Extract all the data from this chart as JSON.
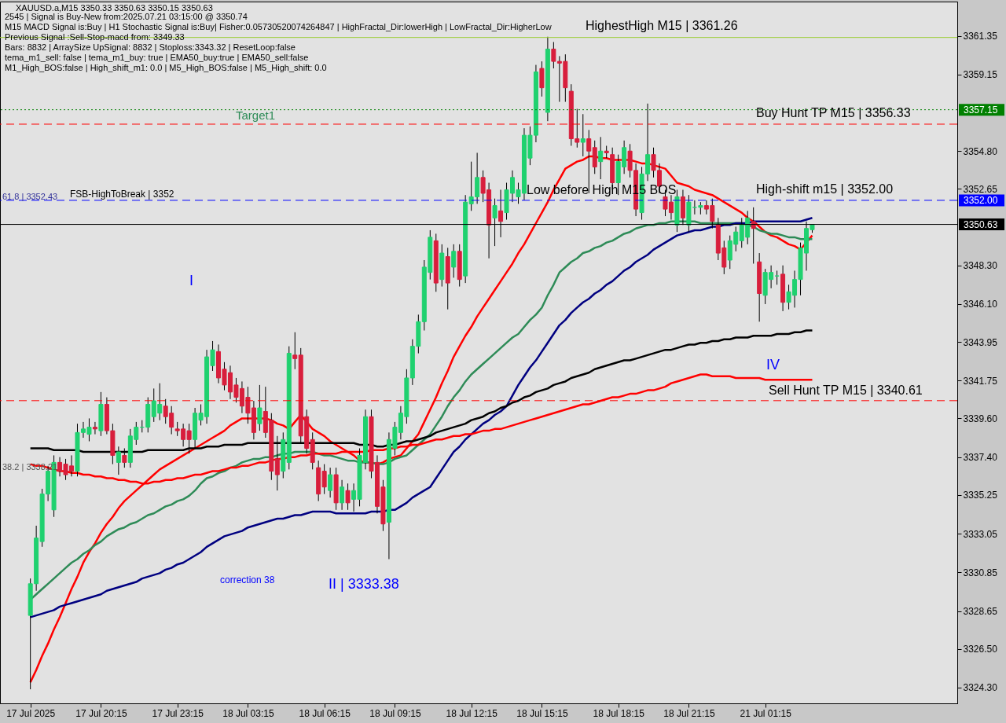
{
  "chart_data": {
    "type": "candlestick",
    "title": "XAUUSD.a,M15  3350.33 3350.63 3350.15 3350.63",
    "annotations": [
      "2545 | Signal is Buy-New from:2025.07.21 03:15:00 @ 3350.74",
      "M15 MACD Signal is:Buy | H1 Stochastic Signal is:Buy| Fisher:0.05730520074264847 | HighFractal_Dir:lowerHigh | LowFractal_Dir:HigherLow",
      "Previous Signal :Sell-Stop-macd from: 3349.33",
      "Bars: 8832 | ArraySize UpSignal: 8832 | Stoploss:3343.32 | ResetLoop:false",
      "tema_m1_sell: false | tema_m1_buy: true | EMA50_buy:true | EMA50_sell:false",
      "M1_High_BOS:false | High_shift_m1: 0.0 | M5_High_BOS:false | M5_High_shift: 0.0",
      "Target1",
      "HighestHigh  M15 | 3361.26",
      "Buy Hunt TP M15 | 3356.33",
      "High-shift m15 | 3352.00",
      "Sell Hunt TP M15 | 3340.61",
      "Low before High  M15 BOS",
      "FSB-HighToBreak | 3352",
      "61.8 | 3352.43",
      "38.2 | 3338.21",
      "I",
      "II | 3333.38",
      "IV",
      "correction 38"
    ],
    "categories": [
      "17 Jul 2025",
      null,
      null,
      null,
      null,
      null,
      null,
      null,
      null,
      null,
      null,
      null,
      "17 Jul 20:15",
      null,
      null,
      null,
      null,
      null,
      null,
      null,
      null,
      null,
      null,
      null,
      null,
      "17 Jul 23:15",
      null,
      null,
      null,
      null,
      null,
      null,
      null,
      null,
      null,
      null,
      null,
      "18 Jul 03:15",
      null,
      null,
      null,
      null,
      null,
      null,
      null,
      null,
      null,
      null,
      null,
      null,
      "18 Jul 06:15",
      null,
      null,
      null,
      null,
      null,
      null,
      null,
      null,
      null,
      null,
      null,
      "18 Jul 09:15",
      null,
      null,
      null,
      null,
      null,
      null,
      null,
      null,
      null,
      null,
      null,
      null,
      "18 Jul 12:15",
      null,
      null,
      null,
      null,
      null,
      null,
      null,
      null,
      null,
      null,
      null,
      "18 Jul 15:15",
      null,
      null,
      null,
      null,
      null,
      null,
      null,
      null,
      null,
      null,
      null,
      null,
      "18 Jul 18:15",
      null,
      null,
      null,
      null,
      null,
      null,
      null,
      null,
      null,
      null,
      null,
      "18 Jul 21:15",
      null,
      null,
      null,
      null,
      null,
      null,
      null,
      null,
      null,
      null,
      null,
      null,
      "21 Jul 01:15",
      null,
      null,
      null,
      null,
      null,
      null,
      null,
      null
    ],
    "ohlc": [
      [
        3328.4,
        3330.5,
        3324.2,
        3330.2
      ],
      [
        3330.2,
        3333.5,
        3329.8,
        3332.8
      ],
      [
        3332.6,
        3335.6,
        3332.3,
        3335.3
      ],
      [
        3335.3,
        3336.9,
        3334.9,
        3336.6
      ],
      [
        3334.4,
        3337.5,
        3334.0,
        3337.1
      ],
      [
        3337.1,
        3337.4,
        3336.3,
        3336.6
      ],
      [
        3337.0,
        3337.3,
        3336.1,
        3336.4
      ],
      [
        3336.9,
        3337.5,
        3336.3,
        3336.6
      ],
      [
        3336.6,
        3339.3,
        3336.3,
        3338.8
      ],
      [
        3338.8,
        3339.4,
        3338.5,
        3339.0
      ],
      [
        3338.7,
        3339.6,
        3338.3,
        3339.1
      ],
      [
        3339.1,
        3339.4,
        3338.7,
        3339.0
      ],
      [
        3338.9,
        3341.1,
        3338.6,
        3340.4
      ],
      [
        3340.4,
        3340.8,
        3338.7,
        3338.9
      ],
      [
        3338.9,
        3339.3,
        3337.0,
        3337.5
      ],
      [
        3337.1,
        3338.0,
        3336.4,
        3337.7
      ],
      [
        3337.5,
        3337.9,
        3336.8,
        3337.1
      ],
      [
        3337.1,
        3339.0,
        3336.8,
        3338.6
      ],
      [
        3338.4,
        3339.4,
        3338.1,
        3339.1
      ],
      [
        3339.1,
        3339.5,
        3338.8,
        3339.1
      ],
      [
        3339.1,
        3340.8,
        3338.8,
        3340.4
      ],
      [
        3339.7,
        3341.3,
        3339.4,
        3340.6
      ],
      [
        3339.9,
        3341.6,
        3339.5,
        3340.4
      ],
      [
        3340.3,
        3340.7,
        3339.3,
        3339.7
      ],
      [
        3339.9,
        3340.3,
        3338.7,
        3339.1
      ],
      [
        3339.0,
        3339.4,
        3338.6,
        3338.9
      ],
      [
        3339.0,
        3339.3,
        3338.0,
        3338.4
      ],
      [
        3338.9,
        3339.3,
        3337.6,
        3338.4
      ],
      [
        3338.4,
        3340.2,
        3337.9,
        3339.9
      ],
      [
        3339.5,
        3340.4,
        3339.2,
        3339.9
      ],
      [
        3339.7,
        3343.5,
        3339.3,
        3343.1
      ],
      [
        3342.6,
        3344.0,
        3342.3,
        3343.5
      ],
      [
        3343.4,
        3343.8,
        3341.6,
        3341.9
      ],
      [
        3342.4,
        3342.8,
        3341.2,
        3341.5
      ],
      [
        3342.2,
        3342.6,
        3340.7,
        3341.1
      ],
      [
        3341.5,
        3341.9,
        3340.5,
        3340.8
      ],
      [
        3341.3,
        3341.7,
        3339.9,
        3340.3
      ],
      [
        3340.8,
        3341.4,
        3339.3,
        3339.9
      ],
      [
        3340.2,
        3340.6,
        3338.4,
        3338.8
      ],
      [
        3339.3,
        3341.5,
        3338.9,
        3340.2
      ],
      [
        3340.0,
        3341.4,
        3338.5,
        3338.8
      ],
      [
        3339.5,
        3339.9,
        3336.1,
        3336.6
      ],
      [
        3337.3,
        3338.6,
        3335.5,
        3336.4
      ],
      [
        3336.6,
        3338.8,
        3336.2,
        3338.4
      ],
      [
        3337.1,
        3343.7,
        3336.7,
        3343.3
      ],
      [
        3343.2,
        3344.5,
        3342.4,
        3343.0
      ],
      [
        3343.2,
        3343.6,
        3338.2,
        3338.6
      ],
      [
        3339.7,
        3340.1,
        3337.6,
        3337.9
      ],
      [
        3338.4,
        3338.8,
        3336.7,
        3337.1
      ],
      [
        3336.8,
        3337.2,
        3334.9,
        3335.3
      ],
      [
        3336.6,
        3337.0,
        3335.3,
        3335.7
      ],
      [
        3335.5,
        3336.8,
        3335.1,
        3336.4
      ],
      [
        3336.4,
        3336.8,
        3334.4,
        3334.8
      ],
      [
        3334.8,
        3336.1,
        3334.4,
        3335.7
      ],
      [
        3335.5,
        3335.9,
        3334.4,
        3334.8
      ],
      [
        3335.0,
        3335.9,
        3334.3,
        3335.5
      ],
      [
        3335.0,
        3337.9,
        3334.6,
        3337.5
      ],
      [
        3337.1,
        3340.1,
        3336.7,
        3339.7
      ],
      [
        3339.7,
        3340.1,
        3336.2,
        3336.6
      ],
      [
        3337.1,
        3337.5,
        3334.2,
        3334.6
      ],
      [
        3335.7,
        3336.1,
        3333.2,
        3333.6
      ],
      [
        3333.7,
        3338.8,
        3331.6,
        3338.4
      ],
      [
        3337.9,
        3339.4,
        3337.5,
        3339.1
      ],
      [
        3338.8,
        3340.3,
        3338.4,
        3339.9
      ],
      [
        3339.7,
        3342.4,
        3339.3,
        3341.9
      ],
      [
        3341.9,
        3344.1,
        3341.5,
        3343.7
      ],
      [
        3343.7,
        3345.5,
        3343.3,
        3345.1
      ],
      [
        3345.1,
        3348.6,
        3344.6,
        3348.2
      ],
      [
        3347.9,
        3350.3,
        3347.5,
        3349.9
      ],
      [
        3349.7,
        3350.1,
        3346.8,
        3347.3
      ],
      [
        3347.5,
        3349.5,
        3347.1,
        3349.0
      ],
      [
        3348.8,
        3349.3,
        3345.8,
        3347.3
      ],
      [
        3348.2,
        3349.5,
        3347.6,
        3349.1
      ],
      [
        3349.1,
        3349.5,
        3347.1,
        3347.5
      ],
      [
        3347.7,
        3352.3,
        3347.3,
        3351.9
      ],
      [
        3351.8,
        3354.2,
        3351.4,
        3352.2
      ],
      [
        3352.2,
        3354.7,
        3351.8,
        3353.3
      ],
      [
        3353.3,
        3353.7,
        3351.9,
        3352.4
      ],
      [
        3352.6,
        3353.0,
        3348.7,
        3350.6
      ],
      [
        3351.0,
        3352.1,
        3349.4,
        3351.7
      ],
      [
        3351.4,
        3352.6,
        3349.9,
        3350.8
      ],
      [
        3351.3,
        3353.0,
        3350.9,
        3352.6
      ],
      [
        3352.4,
        3353.7,
        3351.9,
        3353.3
      ],
      [
        3352.2,
        3353.0,
        3351.8,
        3352.6
      ],
      [
        3352.4,
        3356.1,
        3352.0,
        3355.7
      ],
      [
        3354.4,
        3356.2,
        3354.0,
        3355.7
      ],
      [
        3355.7,
        3359.7,
        3355.3,
        3359.3
      ],
      [
        3359.5,
        3359.9,
        3357.9,
        3358.4
      ],
      [
        3357.0,
        3361.3,
        3356.5,
        3360.6
      ],
      [
        3360.6,
        3361.0,
        3359.5,
        3359.9
      ],
      [
        3359.9,
        3360.2,
        3357.6,
        3359.8
      ],
      [
        3359.9,
        3360.3,
        3357.6,
        3358.4
      ],
      [
        3358.2,
        3358.6,
        3355.1,
        3355.5
      ],
      [
        3355.5,
        3357.2,
        3355.0,
        3355.3
      ],
      [
        3355.3,
        3356.9,
        3354.5,
        3355.5
      ],
      [
        3355.5,
        3356.0,
        3352.4,
        3354.8
      ],
      [
        3355.0,
        3355.4,
        3353.5,
        3353.9
      ],
      [
        3354.2,
        3355.6,
        3353.2,
        3354.8
      ],
      [
        3354.8,
        3355.1,
        3354.4,
        3354.7
      ],
      [
        3354.6,
        3355.0,
        3352.6,
        3353.0
      ],
      [
        3353.0,
        3354.6,
        3352.3,
        3354.2
      ],
      [
        3353.9,
        3355.4,
        3353.5,
        3355.0
      ],
      [
        3354.8,
        3355.2,
        3353.3,
        3353.7
      ],
      [
        3353.7,
        3354.1,
        3351.1,
        3351.5
      ],
      [
        3351.3,
        3353.9,
        3350.9,
        3353.5
      ],
      [
        3353.5,
        3357.5,
        3353.1,
        3354.6
      ],
      [
        3354.6,
        3355.0,
        3353.3,
        3353.7
      ],
      [
        3353.7,
        3354.1,
        3352.4,
        3352.8
      ],
      [
        3352.2,
        3352.6,
        3351.1,
        3351.5
      ],
      [
        3351.9,
        3352.3,
        3350.9,
        3351.3
      ],
      [
        3350.6,
        3352.6,
        3350.2,
        3352.2
      ],
      [
        3352.2,
        3352.6,
        3350.6,
        3351.0
      ],
      [
        3350.6,
        3352.3,
        3350.2,
        3351.9
      ],
      [
        3351.6,
        3352.0,
        3351.2,
        3351.6
      ],
      [
        3351.6,
        3351.9,
        3351.2,
        3351.7
      ],
      [
        3351.7,
        3352.0,
        3351.2,
        3351.5
      ],
      [
        3351.7,
        3352.1,
        3350.4,
        3350.8
      ],
      [
        3350.6,
        3351.0,
        3348.6,
        3349.0
      ],
      [
        3349.3,
        3349.7,
        3347.8,
        3348.2
      ],
      [
        3348.6,
        3350.0,
        3348.1,
        3349.7
      ],
      [
        3349.5,
        3350.5,
        3349.1,
        3350.2
      ],
      [
        3349.7,
        3351.0,
        3349.3,
        3350.6
      ],
      [
        3349.9,
        3351.4,
        3349.5,
        3351.0
      ],
      [
        3350.8,
        3351.6,
        3348.4,
        3350.4
      ],
      [
        3348.5,
        3349.0,
        3345.1,
        3346.7
      ],
      [
        3346.6,
        3348.1,
        3346.1,
        3347.9
      ],
      [
        3347.5,
        3348.3,
        3347.0,
        3347.9
      ],
      [
        3347.7,
        3348.0,
        3347.2,
        3347.7
      ],
      [
        3347.8,
        3348.3,
        3345.7,
        3346.2
      ],
      [
        3346.2,
        3347.2,
        3345.8,
        3346.8
      ],
      [
        3346.6,
        3348.0,
        3345.9,
        3347.5
      ],
      [
        3347.5,
        3349.6,
        3346.6,
        3349.3
      ],
      [
        3349.0,
        3350.8,
        3348.0,
        3350.4
      ],
      [
        3350.33,
        3350.63,
        3350.15,
        3350.63
      ]
    ],
    "colors": [
      "#1fd16f",
      "#1fd16f",
      "#1fd16f",
      "#1fd16f",
      "#1fd16f",
      "#d81e3c",
      "#d81e3c",
      "#d81e3c",
      "#1fd16f",
      "#1fd16f",
      "#1fd16f",
      "#d81e3c",
      "#1fd16f",
      "#d81e3c",
      "#d81e3c",
      "#1fd16f",
      "#d81e3c",
      "#1fd16f",
      "#1fd16f",
      "#1fd16f",
      "#1fd16f",
      "#1fd16f",
      "#1fd16f",
      "#d81e3c",
      "#d81e3c",
      "#d81e3c",
      "#d81e3c",
      "#d81e3c",
      "#1fd16f",
      "#1fd16f",
      "#1fd16f",
      "#1fd16f",
      "#d81e3c",
      "#d81e3c",
      "#d81e3c",
      "#d81e3c",
      "#d81e3c",
      "#d81e3c",
      "#d81e3c",
      "#1fd16f",
      "#d81e3c",
      "#d81e3c",
      "#d81e3c",
      "#1fd16f",
      "#1fd16f",
      "#d81e3c",
      "#d81e3c",
      "#d81e3c",
      "#d81e3c",
      "#d81e3c",
      "#d81e3c",
      "#1fd16f",
      "#d81e3c",
      "#1fd16f",
      "#d81e3c",
      "#1fd16f",
      "#1fd16f",
      "#1fd16f",
      "#d81e3c",
      "#d81e3c",
      "#d81e3c",
      "#1fd16f",
      "#1fd16f",
      "#1fd16f",
      "#1fd16f",
      "#1fd16f",
      "#1fd16f",
      "#1fd16f",
      "#1fd16f",
      "#d81e3c",
      "#1fd16f",
      "#d81e3c",
      "#1fd16f",
      "#d81e3c",
      "#1fd16f",
      "#1fd16f",
      "#1fd16f",
      "#d81e3c",
      "#d81e3c",
      "#1fd16f",
      "#d81e3c",
      "#1fd16f",
      "#1fd16f",
      "#1fd16f",
      "#1fd16f",
      "#1fd16f",
      "#1fd16f",
      "#d81e3c",
      "#1fd16f",
      "#d81e3c",
      "#d81e3c",
      "#d81e3c",
      "#d81e3c",
      "#d81e3c",
      "#1fd16f",
      "#d81e3c",
      "#d81e3c",
      "#1fd16f",
      "#d81e3c",
      "#d81e3c",
      "#1fd16f",
      "#1fd16f",
      "#d81e3c",
      "#d81e3c",
      "#1fd16f",
      "#1fd16f",
      "#d81e3c",
      "#d81e3c",
      "#d81e3c",
      "#d81e3c",
      "#1fd16f",
      "#d81e3c",
      "#1fd16f",
      "#1fd16f",
      "#1fd16f",
      "#d81e3c",
      "#d81e3c",
      "#d81e3c",
      "#d81e3c",
      "#1fd16f",
      "#1fd16f",
      "#1fd16f",
      "#1fd16f",
      "#d81e3c",
      "#d81e3c",
      "#1fd16f",
      "#1fd16f",
      "#1fd16f",
      "#d81e3c",
      "#1fd16f",
      "#1fd16f",
      "#1fd16f",
      "#1fd16f",
      "#1fd16f"
    ],
    "series": [
      {
        "type": "line",
        "color": "#ff0000",
        "values": [
          3324.6,
          3325.3,
          3326.1,
          3326.8,
          3327.6,
          3328.3,
          3329.1,
          3329.9,
          3330.6,
          3331.4,
          3332.0,
          3332.5,
          3333.1,
          3333.6,
          3334.0,
          3334.5,
          3334.9,
          3335.2,
          3335.5,
          3335.8,
          3336.1,
          3336.4,
          3336.7,
          3336.9,
          3337.1,
          3337.3,
          3337.5,
          3337.7,
          3337.9,
          3338.1,
          3338.3,
          3338.5,
          3338.7,
          3338.9,
          3339.2,
          3339.4,
          3339.6,
          3339.6,
          3339.6,
          3339.6,
          3339.6,
          3339.5,
          3339.3,
          3339.2,
          3339.0,
          3339.4,
          3339.8,
          3339.4,
          3339.0,
          3338.8,
          3338.6,
          3338.3,
          3338.1,
          3337.9,
          3337.7,
          3337.5,
          3337.2,
          3337.1,
          3337.1,
          3337.0,
          3337.1,
          3337.3,
          3337.4,
          3337.5,
          3337.9,
          3338.3,
          3338.7,
          3339.4,
          3340.1,
          3340.8,
          3341.6,
          3342.3,
          3343.1,
          3343.7,
          3344.3,
          3344.8,
          3345.4,
          3345.9,
          3346.4,
          3346.9,
          3347.4,
          3347.9,
          3348.4,
          3349.0,
          3349.5,
          3350.1,
          3350.7,
          3351.3,
          3351.9,
          3352.6,
          3353.2,
          3353.8,
          3354.0,
          3354.2,
          3354.3,
          3354.5,
          3354.5,
          3354.4,
          3354.4,
          3354.3,
          3354.3,
          3354.3,
          3354.3,
          3354.2,
          3354.1,
          3354.1,
          3354.0,
          3353.9,
          3353.8,
          3353.4,
          3353.0,
          3352.9,
          3352.8,
          3352.6,
          3352.5,
          3352.4,
          3352.3,
          3352.1,
          3351.9,
          3351.7,
          3351.5,
          3351.3,
          3351.0,
          3350.8,
          3350.5,
          3350.2,
          3350.0,
          3349.9,
          3349.7,
          3349.5,
          3349.4,
          3349.2,
          3349.6,
          3350.0
        ]
      },
      {
        "type": "line",
        "color": "#2e8b57",
        "values": [
          3329.3,
          3329.6,
          3329.9,
          3330.2,
          3330.5,
          3330.8,
          3331.1,
          3331.4,
          3331.6,
          3331.9,
          3332.1,
          3332.4,
          3332.6,
          3332.9,
          3333.1,
          3333.3,
          3333.4,
          3333.6,
          3333.7,
          3333.9,
          3334.1,
          3334.2,
          3334.4,
          3334.6,
          3334.7,
          3334.9,
          3335.0,
          3335.2,
          3335.5,
          3335.9,
          3336.2,
          3336.3,
          3336.5,
          3336.6,
          3336.8,
          3336.9,
          3337.1,
          3337.2,
          3337.3,
          3337.3,
          3337.4,
          3337.4,
          3337.5,
          3337.6,
          3337.6,
          3337.7,
          3337.7,
          3337.7,
          3337.7,
          3337.6,
          3337.5,
          3337.5,
          3337.4,
          3337.3,
          3337.2,
          3337.2,
          3337.1,
          3337.1,
          3337.1,
          3337.0,
          3337.0,
          3337.1,
          3337.3,
          3337.4,
          3337.5,
          3337.8,
          3338.1,
          3338.4,
          3338.7,
          3339.2,
          3339.7,
          3340.3,
          3340.8,
          3341.2,
          3341.7,
          3342.1,
          3342.4,
          3342.7,
          3343.0,
          3343.3,
          3343.6,
          3343.9,
          3344.2,
          3344.4,
          3344.8,
          3345.2,
          3345.5,
          3345.9,
          3346.6,
          3347.2,
          3347.9,
          3348.2,
          3348.5,
          3348.7,
          3349.0,
          3349.1,
          3349.3,
          3349.4,
          3349.6,
          3349.7,
          3349.9,
          3350.1,
          3350.2,
          3350.4,
          3350.5,
          3350.6,
          3350.6,
          3350.7,
          3350.7,
          3350.8,
          3350.8,
          3350.8,
          3350.8,
          3350.8,
          3350.7,
          3350.7,
          3350.7,
          3350.7,
          3350.7,
          3350.7,
          3350.7,
          3350.7,
          3350.6,
          3350.5,
          3350.3,
          3350.2,
          3350.1,
          3350.1,
          3350.0,
          3349.9,
          3349.9,
          3349.8,
          3349.8,
          3349.8
        ]
      },
      {
        "type": "line",
        "color": "#000080",
        "values": [
          3328.3,
          3328.4,
          3328.5,
          3328.6,
          3328.7,
          3328.9,
          3329.0,
          3329.1,
          3329.2,
          3329.3,
          3329.4,
          3329.5,
          3329.6,
          3329.8,
          3329.9,
          3330.0,
          3330.1,
          3330.2,
          3330.3,
          3330.5,
          3330.6,
          3330.7,
          3330.8,
          3331.0,
          3331.1,
          3331.3,
          3331.4,
          3331.6,
          3331.8,
          3332.0,
          3332.3,
          3332.5,
          3332.7,
          3332.9,
          3333.0,
          3333.1,
          3333.2,
          3333.4,
          3333.5,
          3333.6,
          3333.7,
          3333.8,
          3333.9,
          3333.9,
          3334.0,
          3334.1,
          3334.1,
          3334.2,
          3334.3,
          3334.3,
          3334.3,
          3334.3,
          3334.2,
          3334.2,
          3334.2,
          3334.2,
          3334.2,
          3334.2,
          3334.3,
          3334.3,
          3334.3,
          3334.4,
          3334.4,
          3334.6,
          3334.8,
          3335.1,
          3335.3,
          3335.5,
          3335.7,
          3336.2,
          3336.7,
          3337.2,
          3337.7,
          3338.0,
          3338.4,
          3338.7,
          3339.0,
          3339.3,
          3339.5,
          3339.8,
          3340.0,
          3340.3,
          3340.9,
          3341.5,
          3342.0,
          3342.5,
          3342.9,
          3343.4,
          3343.9,
          3344.4,
          3344.9,
          3345.2,
          3345.6,
          3345.9,
          3346.2,
          3346.4,
          3346.7,
          3346.9,
          3347.2,
          3347.4,
          3347.7,
          3348.0,
          3348.2,
          3348.5,
          3348.7,
          3348.9,
          3349.2,
          3349.4,
          3349.6,
          3349.8,
          3350.0,
          3350.1,
          3350.2,
          3350.3,
          3350.3,
          3350.4,
          3350.5,
          3350.5,
          3350.6,
          3350.6,
          3350.7,
          3350.7,
          3350.7,
          3350.8,
          3350.8,
          3350.8,
          3350.8,
          3350.8,
          3350.8,
          3350.8,
          3350.8,
          3350.8,
          3350.9,
          3351.0
        ]
      },
      {
        "type": "line",
        "color": "#000000",
        "values": [
          3337.9,
          3337.9,
          3337.9,
          3337.9,
          3337.8,
          3337.8,
          3337.8,
          3337.8,
          3337.8,
          3337.7,
          3337.7,
          3337.7,
          3337.7,
          3337.7,
          3337.7,
          3337.7,
          3337.7,
          3337.7,
          3337.7,
          3337.7,
          3337.8,
          3337.8,
          3337.8,
          3337.8,
          3337.8,
          3337.8,
          3337.8,
          3337.9,
          3337.9,
          3337.9,
          3338.0,
          3338.0,
          3338.0,
          3338.1,
          3338.1,
          3338.1,
          3338.1,
          3338.2,
          3338.2,
          3338.2,
          3338.2,
          3338.2,
          3338.2,
          3338.2,
          3338.2,
          3338.2,
          3338.2,
          3338.2,
          3338.2,
          3338.2,
          3338.2,
          3338.2,
          3338.2,
          3338.2,
          3338.2,
          3338.2,
          3338.1,
          3338.1,
          3338.1,
          3338.0,
          3338.0,
          3338.1,
          3338.1,
          3338.2,
          3338.3,
          3338.3,
          3338.4,
          3338.5,
          3338.6,
          3338.8,
          3338.9,
          3339.0,
          3339.1,
          3339.2,
          3339.3,
          3339.5,
          3339.6,
          3339.7,
          3339.9,
          3340.0,
          3340.2,
          3340.3,
          3340.5,
          3340.6,
          3340.8,
          3340.9,
          3341.1,
          3341.2,
          3341.3,
          3341.5,
          3341.6,
          3341.7,
          3341.9,
          3342.0,
          3342.1,
          3342.2,
          3342.4,
          3342.5,
          3342.6,
          3342.7,
          3342.8,
          3342.9,
          3342.9,
          3343.0,
          3343.1,
          3343.2,
          3343.3,
          3343.4,
          3343.5,
          3343.5,
          3343.6,
          3343.7,
          3343.8,
          3343.8,
          3343.9,
          3343.9,
          3344.0,
          3344.0,
          3344.1,
          3344.1,
          3344.2,
          3344.2,
          3344.2,
          3344.3,
          3344.3,
          3344.3,
          3344.3,
          3344.4,
          3344.4,
          3344.4,
          3344.5,
          3344.5,
          3344.6,
          3344.6
        ]
      },
      {
        "type": "line",
        "color": "#ff0000",
        "values": [
          3337.0,
          3336.9,
          3336.9,
          3336.8,
          3336.7,
          3336.6,
          3336.6,
          3336.5,
          3336.5,
          3336.4,
          3336.4,
          3336.3,
          3336.3,
          3336.2,
          3336.2,
          3336.1,
          3336.1,
          3336.0,
          3336.0,
          3335.9,
          3335.9,
          3336.0,
          3336.0,
          3336.1,
          3336.1,
          3336.2,
          3336.2,
          3336.3,
          3336.4,
          3336.4,
          3336.5,
          3336.6,
          3336.6,
          3336.7,
          3336.8,
          3336.8,
          3336.9,
          3336.9,
          3337.0,
          3337.1,
          3337.1,
          3337.2,
          3337.3,
          3337.3,
          3337.4,
          3337.4,
          3337.5,
          3337.5,
          3337.6,
          3337.6,
          3337.6,
          3337.6,
          3337.6,
          3337.7,
          3337.7,
          3337.7,
          3337.7,
          3337.7,
          3337.8,
          3337.8,
          3337.8,
          3337.9,
          3337.9,
          3338.0,
          3338.0,
          3338.1,
          3338.1,
          3338.2,
          3338.3,
          3338.4,
          3338.4,
          3338.5,
          3338.6,
          3338.6,
          3338.7,
          3338.7,
          3338.8,
          3338.9,
          3338.9,
          3339.0,
          3339.0,
          3339.1,
          3339.2,
          3339.3,
          3339.4,
          3339.5,
          3339.6,
          3339.7,
          3339.8,
          3339.9,
          3340.0,
          3340.1,
          3340.2,
          3340.3,
          3340.4,
          3340.4,
          3340.5,
          3340.6,
          3340.7,
          3340.8,
          3340.8,
          3340.9,
          3341.0,
          3341.0,
          3341.1,
          3341.2,
          3341.2,
          3341.3,
          3341.4,
          3341.6,
          3341.7,
          3341.8,
          3341.9,
          3342.0,
          3342.1,
          3342.1,
          3342.0,
          3342.0,
          3342.0,
          3342.0,
          3341.9,
          3341.9,
          3341.9,
          3341.9,
          3341.9,
          3341.8,
          3341.8,
          3341.8,
          3341.8,
          3341.8,
          3341.8,
          3341.8,
          3341.8,
          3341.8
        ]
      }
    ],
    "ylim": [
      3323.4,
      3363.3
    ],
    "yticks": [
      {
        "value": 3324.3,
        "label": "3324.30"
      },
      {
        "value": 3326.5,
        "label": "3326.50"
      },
      {
        "value": 3328.65,
        "label": "3328.65"
      },
      {
        "value": 3330.85,
        "label": "3330.85"
      },
      {
        "value": 3333.05,
        "label": "3333.05"
      },
      {
        "value": 3335.25,
        "label": "3335.25"
      },
      {
        "value": 3337.4,
        "label": "3337.40"
      },
      {
        "value": 3339.6,
        "label": "3339.60"
      },
      {
        "value": 3341.75,
        "label": "3341.75"
      },
      {
        "value": 3343.95,
        "label": "3343.95"
      },
      {
        "value": 3346.1,
        "label": "3346.10"
      },
      {
        "value": 3348.3,
        "label": "3348.30"
      },
      {
        "value": 3352.65,
        "label": "3352.65"
      },
      {
        "value": 3354.8,
        "label": "3354.80"
      },
      {
        "value": 3359.15,
        "label": "3359.15"
      },
      {
        "value": 3361.35,
        "label": "3361.35"
      }
    ],
    "ref_lines": [
      {
        "axis": "y",
        "value": 3357.15,
        "label": "3357.15",
        "color": "#008000",
        "line_style": "dotted"
      },
      {
        "axis": "y",
        "value": 3356.33,
        "label": null,
        "color": "#ff0000",
        "line_style": "dashed"
      },
      {
        "axis": "y",
        "value": 3352.0,
        "label": "3352.00",
        "color": "#0000ff",
        "line_style": "dashed"
      },
      {
        "axis": "y",
        "value": 3350.63,
        "label": "3350.63",
        "color": "#000000",
        "line_style": "solid"
      },
      {
        "axis": "y",
        "value": 3340.61,
        "label": null,
        "color": "#ff0000",
        "line_style": "dashed"
      },
      {
        "axis": "y",
        "value": 3361.26,
        "label": null,
        "color": "#9acd32",
        "line_style": "solid"
      }
    ],
    "grid": false
  }
}
